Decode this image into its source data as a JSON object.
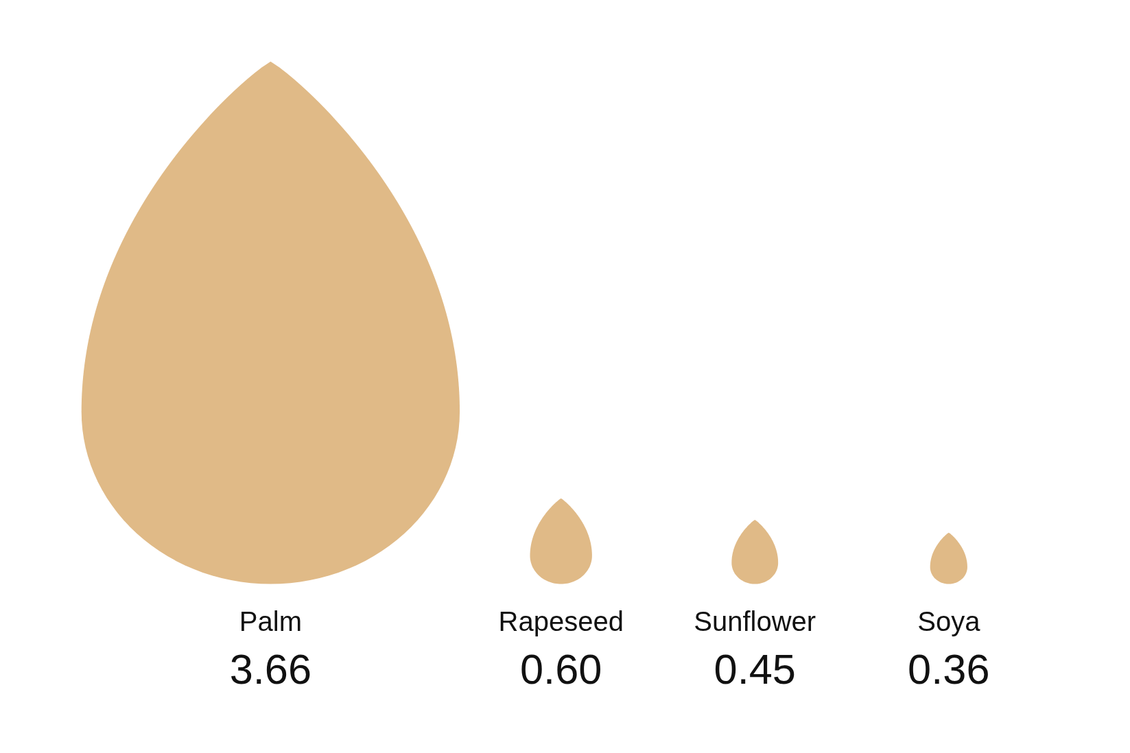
{
  "chart_data": {
    "type": "other",
    "categories": [
      "Palm",
      "Rapeseed",
      "Sunflower",
      "Soya"
    ],
    "values": [
      3.66,
      0.6,
      0.45,
      0.36
    ],
    "value_labels": [
      "3.66",
      "0.60",
      "0.45",
      "0.36"
    ],
    "color": "#e0ba87"
  }
}
